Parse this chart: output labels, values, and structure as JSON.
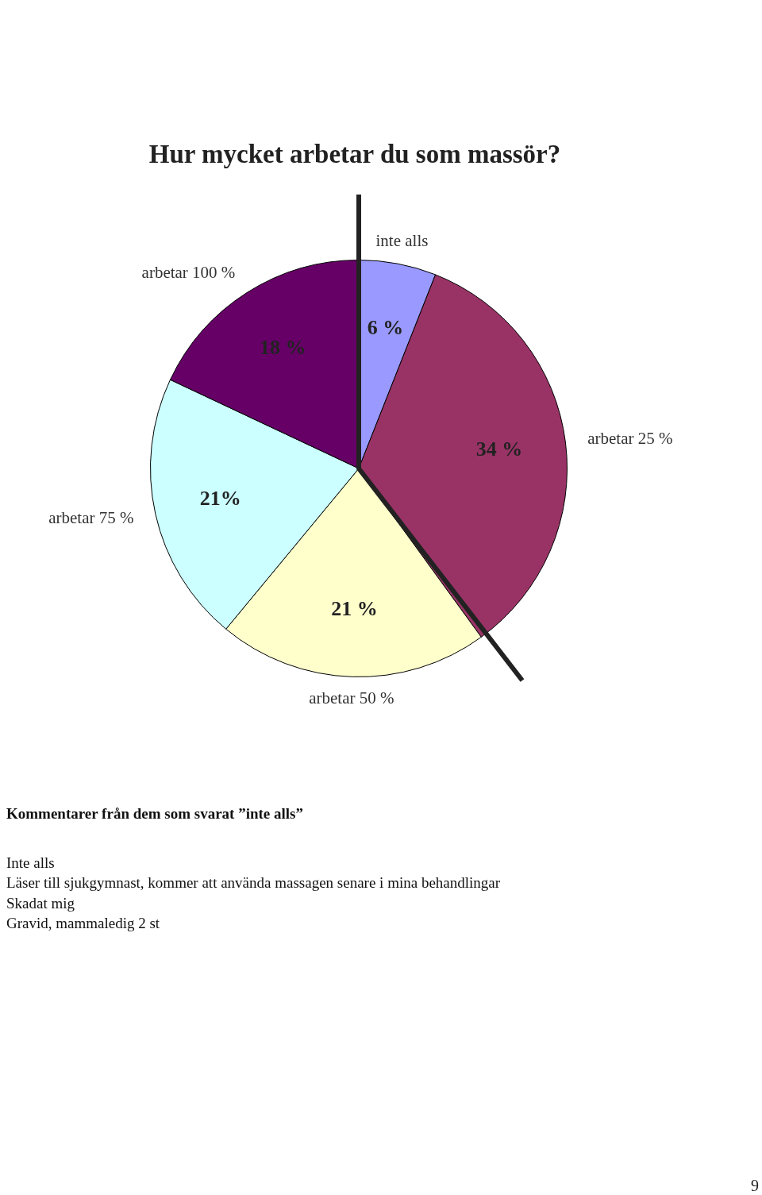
{
  "chart_data": {
    "type": "pie",
    "title": "Hur mycket arbetar du som massör?",
    "categories": [
      "inte alls",
      "arbetar 25 %",
      "arbetar 50 %",
      "arbetar 75 %",
      "arbetar 100 %"
    ],
    "values": [
      6,
      34,
      21,
      21,
      18
    ],
    "value_labels": [
      "6 %",
      "34 %",
      "21 %",
      "21%",
      "18 %"
    ],
    "colors": [
      "#9999ff",
      "#993366",
      "#ffffcc",
      "#ccffff",
      "#660066"
    ],
    "legend": false,
    "annotations": [
      "Kommentarer från dem som svarat ”inte alls”",
      "Inte alls",
      "Läser till sjukgymnast, kommer att använda massagen senare i mina behandlingar",
      "Skadat mig",
      "Gravid, mammaledig 2 st",
      "9"
    ]
  }
}
